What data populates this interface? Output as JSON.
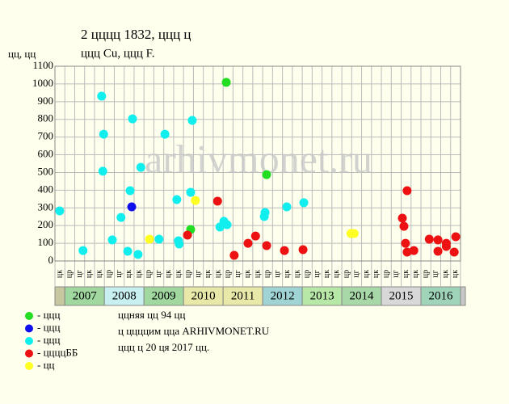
{
  "chart_data": {
    "type": "scatter",
    "title": "2 цццц 1832, ццц ц",
    "subtitle": "ццц Cu, ццц F.",
    "y_label": "цц, цц",
    "watermark": "arhivmonet.ru",
    "xlim": [
      2006.75,
      2017.0
    ],
    "ylim": [
      0,
      1100
    ],
    "yticks": [
      0,
      100,
      200,
      300,
      400,
      500,
      600,
      700,
      800,
      900,
      1000,
      1100
    ],
    "xticks": [
      2006.75,
      2007,
      2007.25,
      2007.5,
      2007.75,
      2008,
      2008.25,
      2008.5,
      2008.75,
      2009,
      2009.25,
      2009.5,
      2009.75,
      2010,
      2010.25,
      2010.5,
      2010.75,
      2011,
      2011.25,
      2011.5,
      2011.75,
      2012,
      2012.25,
      2012.5,
      2012.75,
      2013,
      2013.25,
      2013.5,
      2013.75,
      2014,
      2014.25,
      2014.5,
      2014.75,
      2015,
      2015.25,
      2015.5,
      2015.75,
      2016,
      2016.25,
      2016.5,
      2016.75,
      2017
    ],
    "grid": true,
    "quarter_labels": [
      "цк",
      "цр",
      "цг",
      "цк",
      "цк",
      "цр",
      "цг",
      "цк",
      "цк",
      "цр",
      "цг",
      "цк",
      "цк",
      "цр",
      "цг",
      "цк",
      "цк",
      "цр",
      "цг",
      "цк",
      "цк",
      "цр",
      "цг",
      "цк",
      "цк",
      "цр",
      "цг",
      "цк",
      "цк",
      "цр",
      "цг",
      "цк",
      "цк",
      "цр",
      "цг",
      "цк",
      "цк",
      "цр",
      "цг",
      "цк",
      "цк"
    ],
    "years": [
      2007,
      2008,
      2009,
      2010,
      2011,
      2012,
      2013,
      2014,
      2015,
      2016
    ],
    "year_colors": [
      "#a0d8a0",
      "#c8f0f0",
      "#a0d8a0",
      "#e8e8a8",
      "#e8e8a8",
      "#a0d4d4",
      "#b8e8a8",
      "#a8d8a8",
      "#d8d8d8",
      "#a0d4b8"
    ],
    "series": [
      {
        "name": "- ццц",
        "color": "#22dd22",
        "x": [
          2010.18,
          2011.08,
          2012.1
        ],
        "values": [
          178,
          1009,
          488
        ]
      },
      {
        "name": "- ццц",
        "color": "#1010ee",
        "x": [
          2008.69
        ],
        "values": [
          306
        ]
      },
      {
        "name": "- ццц",
        "color": "#11eeee",
        "x": [
          2006.87,
          2007.46,
          2007.93,
          2007.98,
          2007.96,
          2008.2,
          2008.42,
          2008.59,
          2008.65,
          2008.71,
          2008.85,
          2008.92,
          2009.38,
          2009.53,
          2009.83,
          2009.87,
          2009.89,
          2010.18,
          2010.22,
          2010.92,
          2011.02,
          2011.1,
          2012.04,
          2012.06,
          2012.61,
          2013.04
        ],
        "values": [
          283,
          59,
          931,
          716,
          507,
          119,
          246,
          55,
          397,
          803,
          37,
          529,
          123,
          716,
          347,
          114,
          96,
          388,
          794,
          192,
          224,
          205,
          251,
          274,
          306,
          329
        ]
      },
      {
        "name": "- ццццББ",
        "color": "#ee1111",
        "x": [
          2010.1,
          2010.86,
          2011.28,
          2011.63,
          2011.82,
          2012.1,
          2012.55,
          2013.02,
          2015.53,
          2015.57,
          2015.61,
          2015.65,
          2015.65,
          2015.82,
          2016.21,
          2016.43,
          2016.43,
          2016.64,
          2016.64,
          2016.84,
          2016.88
        ],
        "values": [
          146,
          338,
          32,
          100,
          141,
          87,
          59,
          64,
          242,
          196,
          100,
          397,
          50,
          59,
          123,
          119,
          55,
          100,
          82,
          50,
          137
        ]
      },
      {
        "name": "- цц",
        "color": "#ffff22",
        "x": [
          2009.14,
          2010.3,
          2014.23,
          2014.31
        ],
        "values": [
          123,
          342,
          155,
          155
        ]
      }
    ],
    "notes": [
      "ццняя цц 94 цц",
      "ц ццццим цца ARHIVMONET.RU",
      "ццц ц 20 ця 2017 цц."
    ]
  }
}
